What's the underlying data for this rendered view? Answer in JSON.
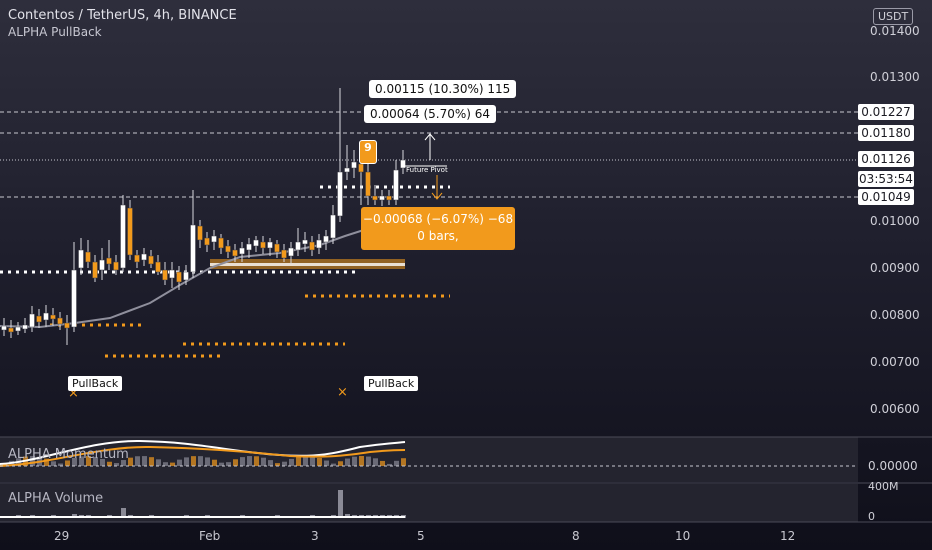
{
  "header": {
    "symbol_title": "Contentos / TetherUS, 4h, BINANCE",
    "indicator_name": "ALPHA PullBack",
    "currency_button": "USDT"
  },
  "price_axis": {
    "labels": [
      "0.01400",
      "0.01300",
      "0.01200",
      "0.01100",
      "0.01000",
      "0.00900",
      "0.00800",
      "0.00700",
      "0.00600"
    ],
    "markers": [
      {
        "label": "0.01227",
        "value": 0.01227,
        "bg": "#ffffff"
      },
      {
        "label": "0.01180",
        "value": 0.0118,
        "bg": "#ffffff"
      },
      {
        "label": "0.01126",
        "value": 0.01126,
        "bg": "#ffffff"
      },
      {
        "label": "03:53:54",
        "value": null,
        "bg": "#ffffff"
      },
      {
        "label": "0.01049",
        "value": 0.01049,
        "bg": "#ffffff"
      }
    ]
  },
  "measure_boxes": {
    "upper": "0.00115 (10.30%) 115",
    "lower": "0.00064 (5.70%) 64",
    "down_line1": "−0.00068 (−6.07%) −68",
    "down_line2": "0 bars,"
  },
  "signals": {
    "count_badge": "9",
    "future_label": "Future Pivot",
    "pullback_labels": [
      "PullBack",
      "PullBack"
    ]
  },
  "panels": {
    "momentum": {
      "label": "ALPHA Momentum",
      "axis": "0.00000"
    },
    "volume": {
      "label": "ALPHA Volume",
      "axis_top": "400M",
      "axis_zero": "0"
    }
  },
  "time_axis": {
    "labels": [
      "29",
      "Feb",
      "3",
      "5",
      "8",
      "10",
      "12"
    ]
  },
  "colors": {
    "bull": "#ffffff",
    "bear": "#f29a1c",
    "accent_orange": "#f29a1c",
    "ma_line": "#8f8f9c",
    "background_top": "#2e2e3c",
    "background_bottom": "#0f0f1a"
  }
}
